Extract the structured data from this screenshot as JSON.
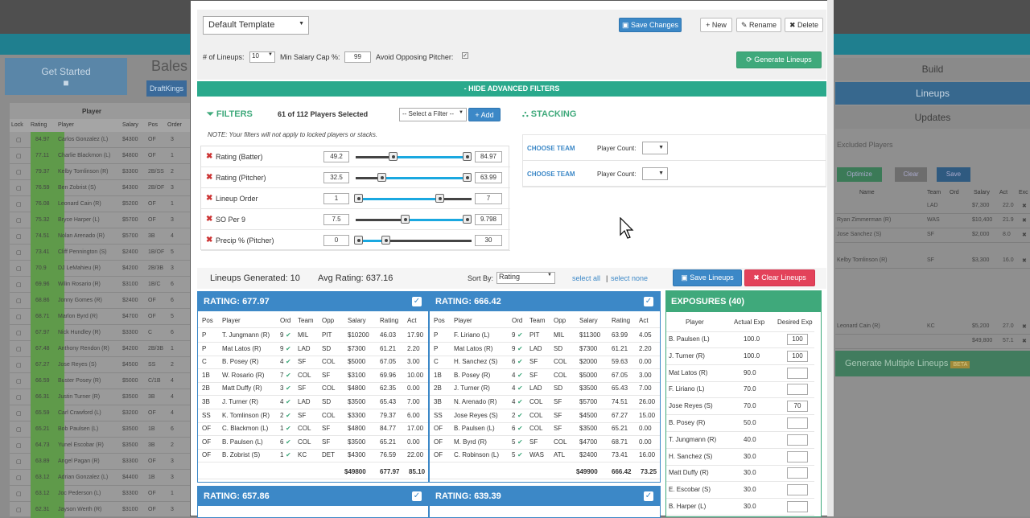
{
  "background": {
    "get_started": "Get Started",
    "bales": "Bales",
    "draftkings": "DraftKings",
    "player_section": "Player",
    "left_headers": [
      "Lock",
      "Rating",
      "Player",
      "Salary",
      "Pos",
      "Order"
    ],
    "left_rows": [
      {
        "rating": "84.97",
        "player": "Carlos Gonzalez (L)",
        "salary": "$4300",
        "pos": "OF",
        "order": "3"
      },
      {
        "rating": "77.11",
        "player": "Charlie Blackmon (L)",
        "salary": "$4800",
        "pos": "OF",
        "order": "1"
      },
      {
        "rating": "79.37",
        "player": "Kelby Tomlinson (R)",
        "salary": "$3300",
        "pos": "2B/SS",
        "order": "2"
      },
      {
        "rating": "76.59",
        "player": "Ben Zobrist (S)",
        "salary": "$4300",
        "pos": "2B/OF",
        "order": "3"
      },
      {
        "rating": "76.08",
        "player": "Leonard Cain (R)",
        "salary": "$5200",
        "pos": "OF",
        "order": "1"
      },
      {
        "rating": "75.32",
        "player": "Bryce Harper (L)",
        "salary": "$5700",
        "pos": "OF",
        "order": "3"
      },
      {
        "rating": "74.51",
        "player": "Nolan Arenado (R)",
        "salary": "$5700",
        "pos": "3B",
        "order": "4"
      },
      {
        "rating": "73.41",
        "player": "Cliff Pennington (S)",
        "salary": "$2400",
        "pos": "1B/OF",
        "order": "5"
      },
      {
        "rating": "70.9",
        "player": "DJ LeMahieu (R)",
        "salary": "$4200",
        "pos": "2B/3B",
        "order": "3"
      },
      {
        "rating": "69.96",
        "player": "Wilin Rosario (R)",
        "salary": "$3100",
        "pos": "1B/C",
        "order": "6"
      },
      {
        "rating": "68.86",
        "player": "Jonny Gomes (R)",
        "salary": "$2400",
        "pos": "OF",
        "order": "6"
      },
      {
        "rating": "68.71",
        "player": "Marlon Byrd (R)",
        "salary": "$4700",
        "pos": "OF",
        "order": "5"
      },
      {
        "rating": "67.97",
        "player": "Nick Hundley (R)",
        "salary": "$3300",
        "pos": "C",
        "order": "6"
      },
      {
        "rating": "67.48",
        "player": "Anthony Rendon (R)",
        "salary": "$4200",
        "pos": "2B/3B",
        "order": "1"
      },
      {
        "rating": "67.27",
        "player": "Jose Reyes (S)",
        "salary": "$4500",
        "pos": "SS",
        "order": "2"
      },
      {
        "rating": "66.59",
        "player": "Buster Posey (R)",
        "salary": "$5000",
        "pos": "C/1B",
        "order": "4"
      },
      {
        "rating": "66.31",
        "player": "Justin Turner (R)",
        "salary": "$3500",
        "pos": "3B",
        "order": "4"
      },
      {
        "rating": "65.59",
        "player": "Carl Crawford (L)",
        "salary": "$3200",
        "pos": "OF",
        "order": "4"
      },
      {
        "rating": "65.21",
        "player": "Bob Paulsen (L)",
        "salary": "$3500",
        "pos": "1B",
        "order": "6"
      },
      {
        "rating": "64.73",
        "player": "Yunel Escobar (R)",
        "salary": "$3500",
        "pos": "3B",
        "order": "2"
      },
      {
        "rating": "63.89",
        "player": "Angel Pagan (R)",
        "salary": "$3300",
        "pos": "OF",
        "order": "3"
      },
      {
        "rating": "63.12",
        "player": "Adrian Gonzalez (L)",
        "salary": "$4400",
        "pos": "1B",
        "order": "3"
      },
      {
        "rating": "63.12",
        "player": "Joc Pederson (L)",
        "salary": "$3300",
        "pos": "OF",
        "order": "1"
      },
      {
        "rating": "62.31",
        "player": "Jayson Werth (R)",
        "salary": "$3100",
        "pos": "OF",
        "order": "3"
      }
    ],
    "tabs": [
      "Build",
      "Lineups",
      "Updates"
    ],
    "excluded": "Excluded Players",
    "optimize": "Optimize",
    "clear": "Clear",
    "save": "Save",
    "right_headers": [
      "Name",
      "Team",
      "Ord",
      "Salary",
      "Act",
      "Exc"
    ],
    "right_rows": [
      {
        "name": "",
        "team": "LAD",
        "ord": "",
        "salary": "$7,300",
        "act": "22.0"
      },
      {
        "name": "Ryan Zimmerman (R)",
        "team": "WAS",
        "ord": "",
        "salary": "$10,400",
        "act": "21.9"
      },
      {
        "name": "Jose Sanchez (S)",
        "team": "SF",
        "ord": "",
        "salary": "$2,000",
        "act": "8.0"
      },
      {
        "name": "Kelby Tomlinson (R)",
        "team": "SF",
        "ord": "",
        "salary": "$3,300",
        "act": "16.0"
      },
      {
        "name": "Leonard Cain (R)",
        "team": "KC",
        "ord": "",
        "salary": "$5,200",
        "act": "27.0"
      },
      {
        "name": "",
        "team": "",
        "ord": "",
        "salary": "$49,800",
        "act": "57.1"
      }
    ],
    "gen_multi": "Generate Multiple Lineups",
    "beta": "BETA"
  },
  "modal": {
    "template_select": "Default Template",
    "save_changes": "Save Changes",
    "new": "New",
    "rename": "Rename",
    "delete": "Delete",
    "lineups_label": "# of Lineups:",
    "lineups_value": "10",
    "min_salary_label": "Min Salary Cap %:",
    "min_salary_value": "99",
    "avoid_label": "Avoid Opposing Pitcher:",
    "generate": "Generate Lineups",
    "adv_filters": "- HIDE ADVANCED FILTERS",
    "filters_title": "FILTERS",
    "players_selected": "61 of 112 Players Selected",
    "select_filter": "-- Select a Filter --",
    "add": "Add",
    "filters_note": "NOTE: Your filters will not apply to locked players or stacks.",
    "filters": [
      {
        "name": "Rating (Batter)",
        "min": "49.2",
        "max": "84.97",
        "lo": 0.3,
        "hi": 0.96
      },
      {
        "name": "Rating (Pitcher)",
        "min": "32.5",
        "max": "63.99",
        "lo": 0.2,
        "hi": 0.96
      },
      {
        "name": "Lineup Order",
        "min": "1",
        "max": "7",
        "lo": 0.0,
        "hi": 0.72
      },
      {
        "name": "SO Per 9",
        "min": "7.5",
        "max": "9.798",
        "lo": 0.4,
        "hi": 0.96
      },
      {
        "name": "Precip % (Pitcher)",
        "min": "0",
        "max": "30",
        "lo": 0.0,
        "hi": 0.26
      }
    ],
    "stacking_title": "STACKING",
    "stacks": [
      {
        "choose": "CHOOSE TEAM",
        "count_label": "Player Count:"
      },
      {
        "choose": "CHOOSE TEAM",
        "count_label": "Player Count:"
      }
    ],
    "lineups_generated": "Lineups Generated: 10",
    "avg_rating": "Avg Rating: 637.16",
    "sort_by_label": "Sort By:",
    "sort_by_value": "Rating",
    "select_all": "select all",
    "sep": "|",
    "select_none": "select none",
    "save_lineups": "Save Lineups",
    "clear_lineups": "Clear Lineups",
    "lineup_headers": [
      "Pos",
      "Player",
      "Ord",
      "Team",
      "Opp",
      "Salary",
      "Rating",
      "Act"
    ],
    "lineups": [
      {
        "title": "RATING: 677.97",
        "rows": [
          [
            "P",
            "T. Jungmann (R)",
            "9",
            "MIL",
            "PIT",
            "$10200",
            "46.03",
            "17.90"
          ],
          [
            "P",
            "Mat Latos (R)",
            "9",
            "LAD",
            "SD",
            "$7300",
            "61.21",
            "2.20"
          ],
          [
            "C",
            "B. Posey (R)",
            "4",
            "SF",
            "COL",
            "$5000",
            "67.05",
            "3.00"
          ],
          [
            "1B",
            "W. Rosario (R)",
            "7",
            "COL",
            "SF",
            "$3100",
            "69.96",
            "10.00"
          ],
          [
            "2B",
            "Matt Duffy (R)",
            "3",
            "SF",
            "COL",
            "$4800",
            "62.35",
            "0.00"
          ],
          [
            "3B",
            "J. Turner (R)",
            "4",
            "LAD",
            "SD",
            "$3500",
            "65.43",
            "7.00"
          ],
          [
            "SS",
            "K. Tomlinson (R)",
            "2",
            "SF",
            "COL",
            "$3300",
            "79.37",
            "6.00"
          ],
          [
            "OF",
            "C. Blackmon (L)",
            "1",
            "COL",
            "SF",
            "$4800",
            "84.77",
            "17.00"
          ],
          [
            "OF",
            "B. Paulsen (L)",
            "6",
            "COL",
            "SF",
            "$3500",
            "65.21",
            "0.00"
          ],
          [
            "OF",
            "B. Zobrist (S)",
            "1",
            "KC",
            "DET",
            "$4300",
            "76.59",
            "22.00"
          ]
        ],
        "total": {
          "salary": "$49800",
          "rating": "677.97",
          "act": "85.10"
        }
      },
      {
        "title": "RATING: 666.42",
        "rows": [
          [
            "P",
            "F. Liriano (L)",
            "9",
            "PIT",
            "MIL",
            "$11300",
            "63.99",
            "4.05"
          ],
          [
            "P",
            "Mat Latos (R)",
            "9",
            "LAD",
            "SD",
            "$7300",
            "61.21",
            "2.20"
          ],
          [
            "C",
            "H. Sanchez (S)",
            "6",
            "SF",
            "COL",
            "$2000",
            "59.63",
            "0.00"
          ],
          [
            "1B",
            "B. Posey (R)",
            "4",
            "SF",
            "COL",
            "$5000",
            "67.05",
            "3.00"
          ],
          [
            "2B",
            "J. Turner (R)",
            "4",
            "LAD",
            "SD",
            "$3500",
            "65.43",
            "7.00"
          ],
          [
            "3B",
            "N. Arenado (R)",
            "4",
            "COL",
            "SF",
            "$5700",
            "74.51",
            "26.00"
          ],
          [
            "SS",
            "Jose Reyes (S)",
            "2",
            "COL",
            "SF",
            "$4500",
            "67.27",
            "15.00"
          ],
          [
            "OF",
            "B. Paulsen (L)",
            "6",
            "COL",
            "SF",
            "$3500",
            "65.21",
            "0.00"
          ],
          [
            "OF",
            "M. Byrd (R)",
            "5",
            "SF",
            "COL",
            "$4700",
            "68.71",
            "0.00"
          ],
          [
            "OF",
            "C. Robinson (L)",
            "5",
            "WAS",
            "ATL",
            "$2400",
            "73.41",
            "16.00"
          ]
        ],
        "total": {
          "salary": "$49900",
          "rating": "666.42",
          "act": "73.25"
        }
      }
    ],
    "lineup3_title": "RATING: 657.86",
    "lineup4_title": "RATING: 639.39",
    "exposures_title": "EXPOSURES (40)",
    "exp_headers": [
      "Player",
      "Actual Exp",
      "Desired Exp"
    ],
    "exposures": [
      {
        "player": "B. Paulsen (L)",
        "actual": "100.0",
        "desired": "100"
      },
      {
        "player": "J. Turner (R)",
        "actual": "100.0",
        "desired": "100"
      },
      {
        "player": "Mat Latos (R)",
        "actual": "90.0",
        "desired": ""
      },
      {
        "player": "F. Liriano (L)",
        "actual": "70.0",
        "desired": ""
      },
      {
        "player": "Jose Reyes (S)",
        "actual": "70.0",
        "desired": "70"
      },
      {
        "player": "B. Posey (R)",
        "actual": "50.0",
        "desired": ""
      },
      {
        "player": "T. Jungmann (R)",
        "actual": "40.0",
        "desired": ""
      },
      {
        "player": "H. Sanchez (S)",
        "actual": "30.0",
        "desired": ""
      },
      {
        "player": "Matt Duffy (R)",
        "actual": "30.0",
        "desired": ""
      },
      {
        "player": "E. Escobar (S)",
        "actual": "30.0",
        "desired": ""
      },
      {
        "player": "B. Harper (L)",
        "actual": "30.0",
        "desired": ""
      }
    ]
  }
}
